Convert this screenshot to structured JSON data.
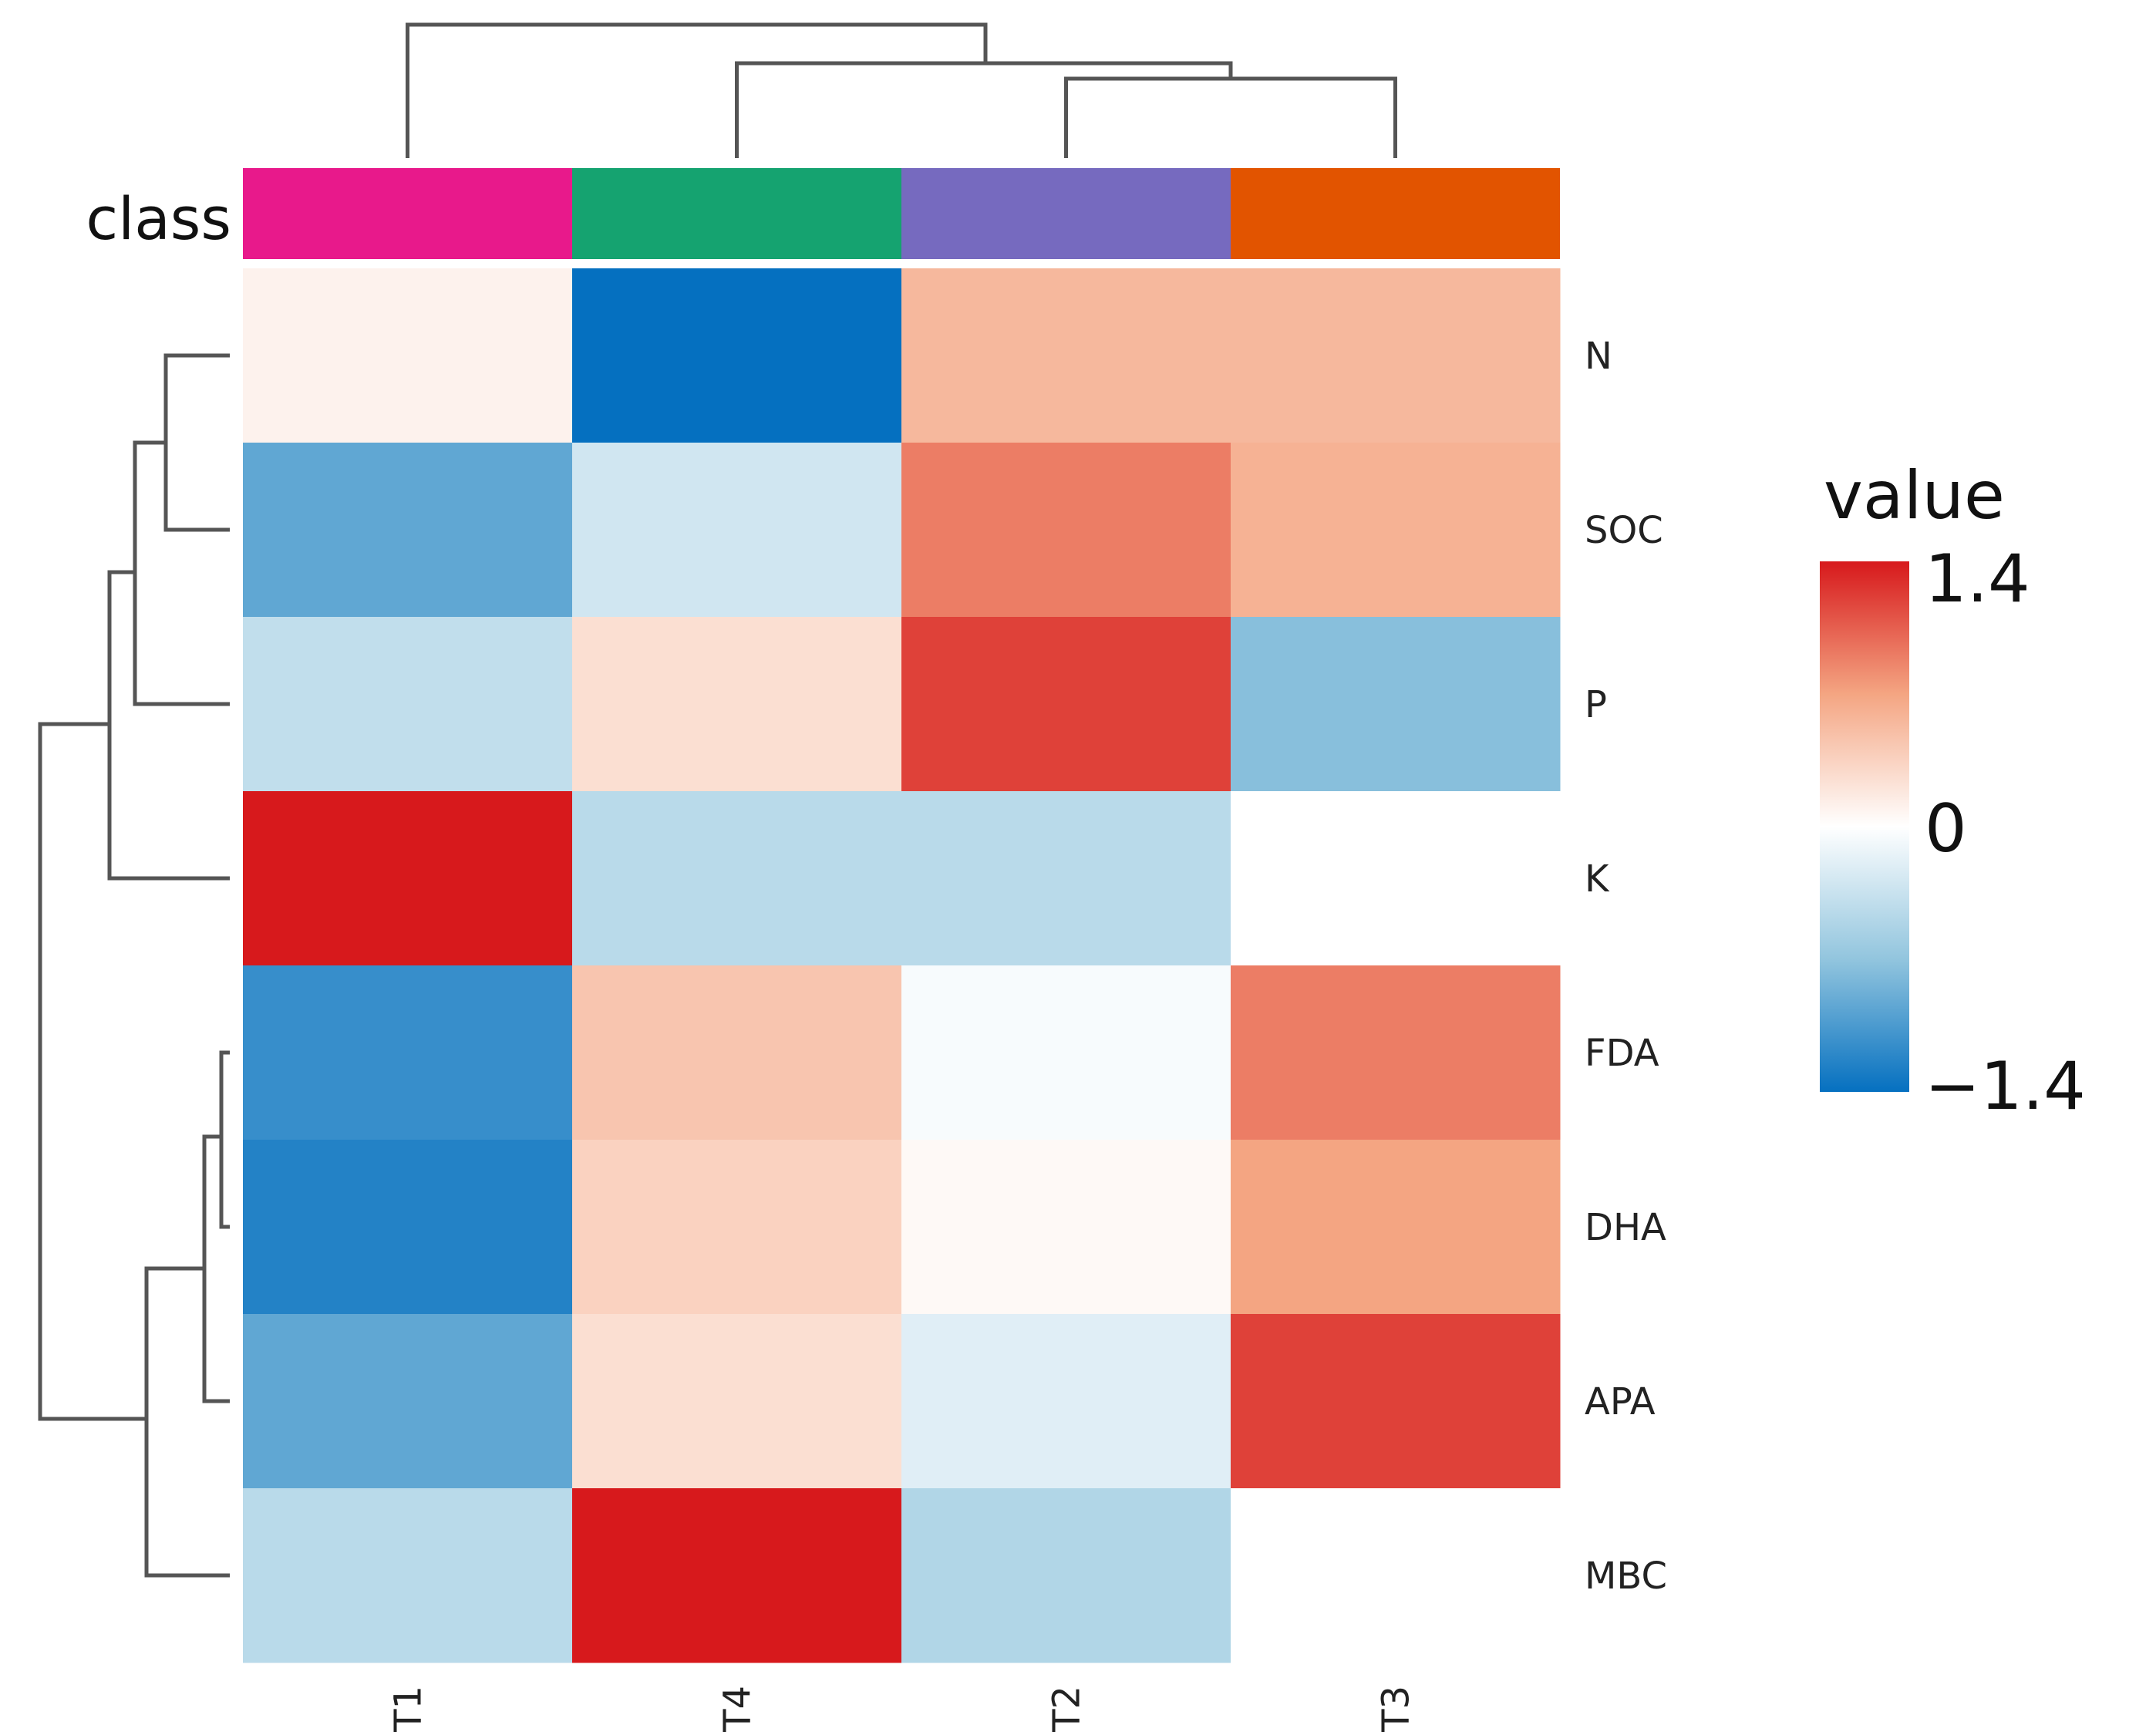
{
  "chart_data": {
    "type": "heatmap",
    "title": "",
    "annotation_label": "class",
    "columns": [
      "T1",
      "T4",
      "T2",
      "T3"
    ],
    "rows": [
      "N",
      "SOC",
      "P",
      "K",
      "FDA",
      "DHA",
      "APA",
      "MBC"
    ],
    "values": [
      [
        0.1,
        -1.4,
        0.55,
        0.55
      ],
      [
        -0.95,
        -0.3,
        0.9,
        0.6
      ],
      [
        -0.4,
        0.25,
        1.2,
        -0.75
      ],
      [
        1.4,
        -0.45,
        -0.45,
        0.0
      ],
      [
        -1.15,
        0.45,
        -0.05,
        0.9
      ],
      [
        -1.25,
        0.35,
        0.05,
        0.7
      ],
      [
        -0.95,
        0.25,
        -0.2,
        1.2
      ],
      [
        -0.45,
        1.4,
        -0.5,
        0.0
      ]
    ],
    "class_colors": {
      "T1": "#e8198b",
      "T4": "#15a370",
      "T2": "#766abf",
      "T3": "#e25400"
    },
    "legend": {
      "title": "value",
      "max_label": "1.4",
      "mid_label": "0",
      "min_label": "−1.4",
      "range": [
        -1.4,
        1.4
      ],
      "placement": "right",
      "colors": [
        "#d7191c",
        "#f4a582",
        "#ffffff",
        "#92c5de",
        "#0570c0"
      ]
    },
    "column_dendrogram": "((T1),((T4),((T2),(T3))))",
    "row_dendrogram": "(((N,SOC),P),K),((FDA,DHA),APA),MBC)"
  }
}
